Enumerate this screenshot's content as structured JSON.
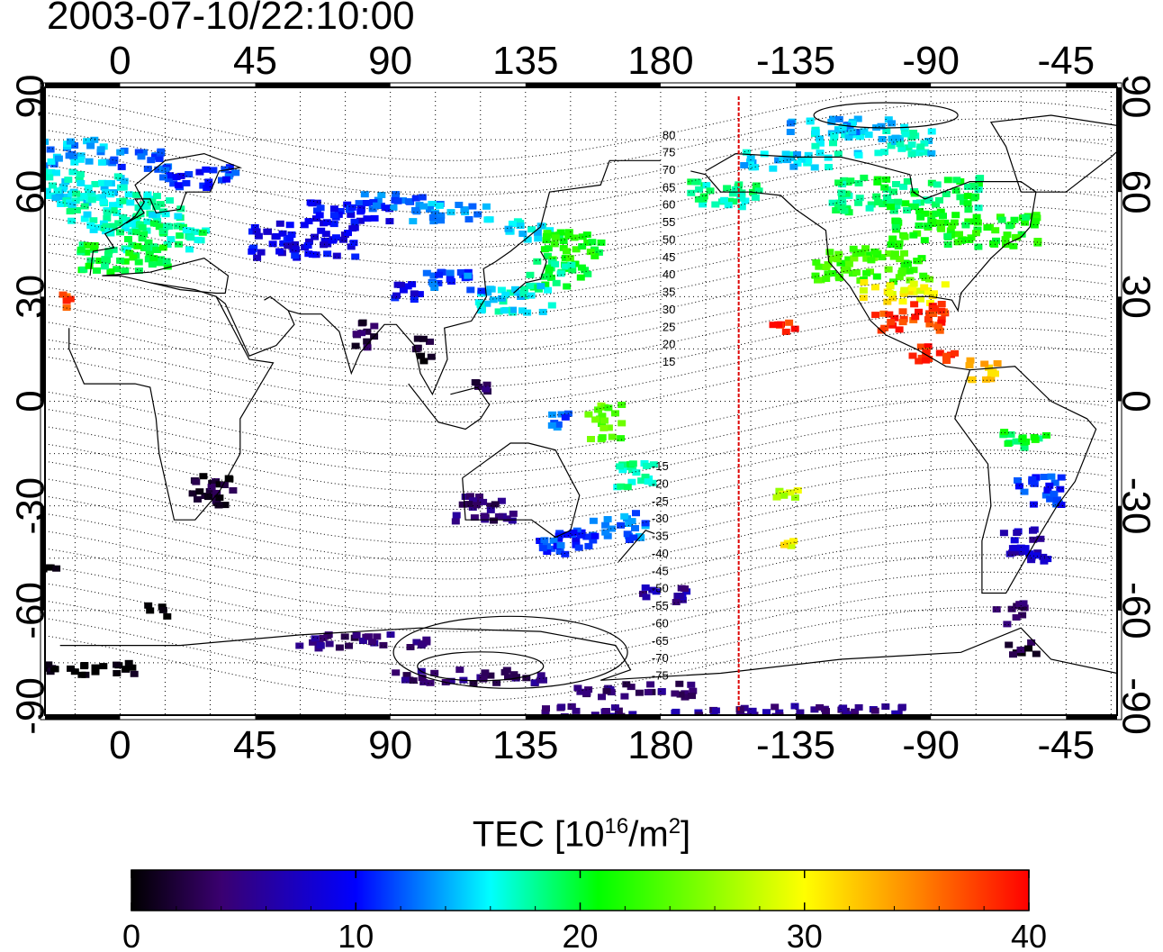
{
  "title": "2003-07-10/22:10:00",
  "map": {
    "lon_ticks": [
      "0",
      "45",
      "90",
      "135",
      "180",
      "-135",
      "-90",
      "-45"
    ],
    "lon_ticks_bottom": [
      "0",
      "45",
      "90",
      "135",
      "180",
      "-135",
      "-90",
      "-45"
    ],
    "lat_ticks_left": [
      "90",
      "60",
      "30",
      "0",
      "-30",
      "-60",
      "-90"
    ],
    "lat_ticks_right": [
      "90",
      "60",
      "30",
      "0",
      "-30",
      "-60",
      "-90"
    ],
    "contour_labels_north": [
      "80",
      "75",
      "70",
      "65",
      "60",
      "55",
      "50",
      "45",
      "40",
      "35",
      "30",
      "25",
      "20",
      "15"
    ],
    "contour_labels_south": [
      "-15",
      "-20",
      "-25",
      "-30",
      "-35",
      "-40",
      "-45",
      "-50",
      "-55",
      "-60",
      "-65",
      "-70",
      "-75"
    ],
    "terminator_color": "#dd0000"
  },
  "colorbar": {
    "label_prefix": "TEC  [10",
    "label_exp1": "16",
    "label_mid": "/m",
    "label_exp2": "2",
    "label_suffix": "]",
    "ticks": [
      "0",
      "10",
      "20",
      "30",
      "40"
    ],
    "min": 0,
    "max": 40,
    "colors": [
      "#000000",
      "#3a0070",
      "#0000ff",
      "#00ffff",
      "#00ff00",
      "#ffff00",
      "#ff8000",
      "#ff0000"
    ]
  }
}
